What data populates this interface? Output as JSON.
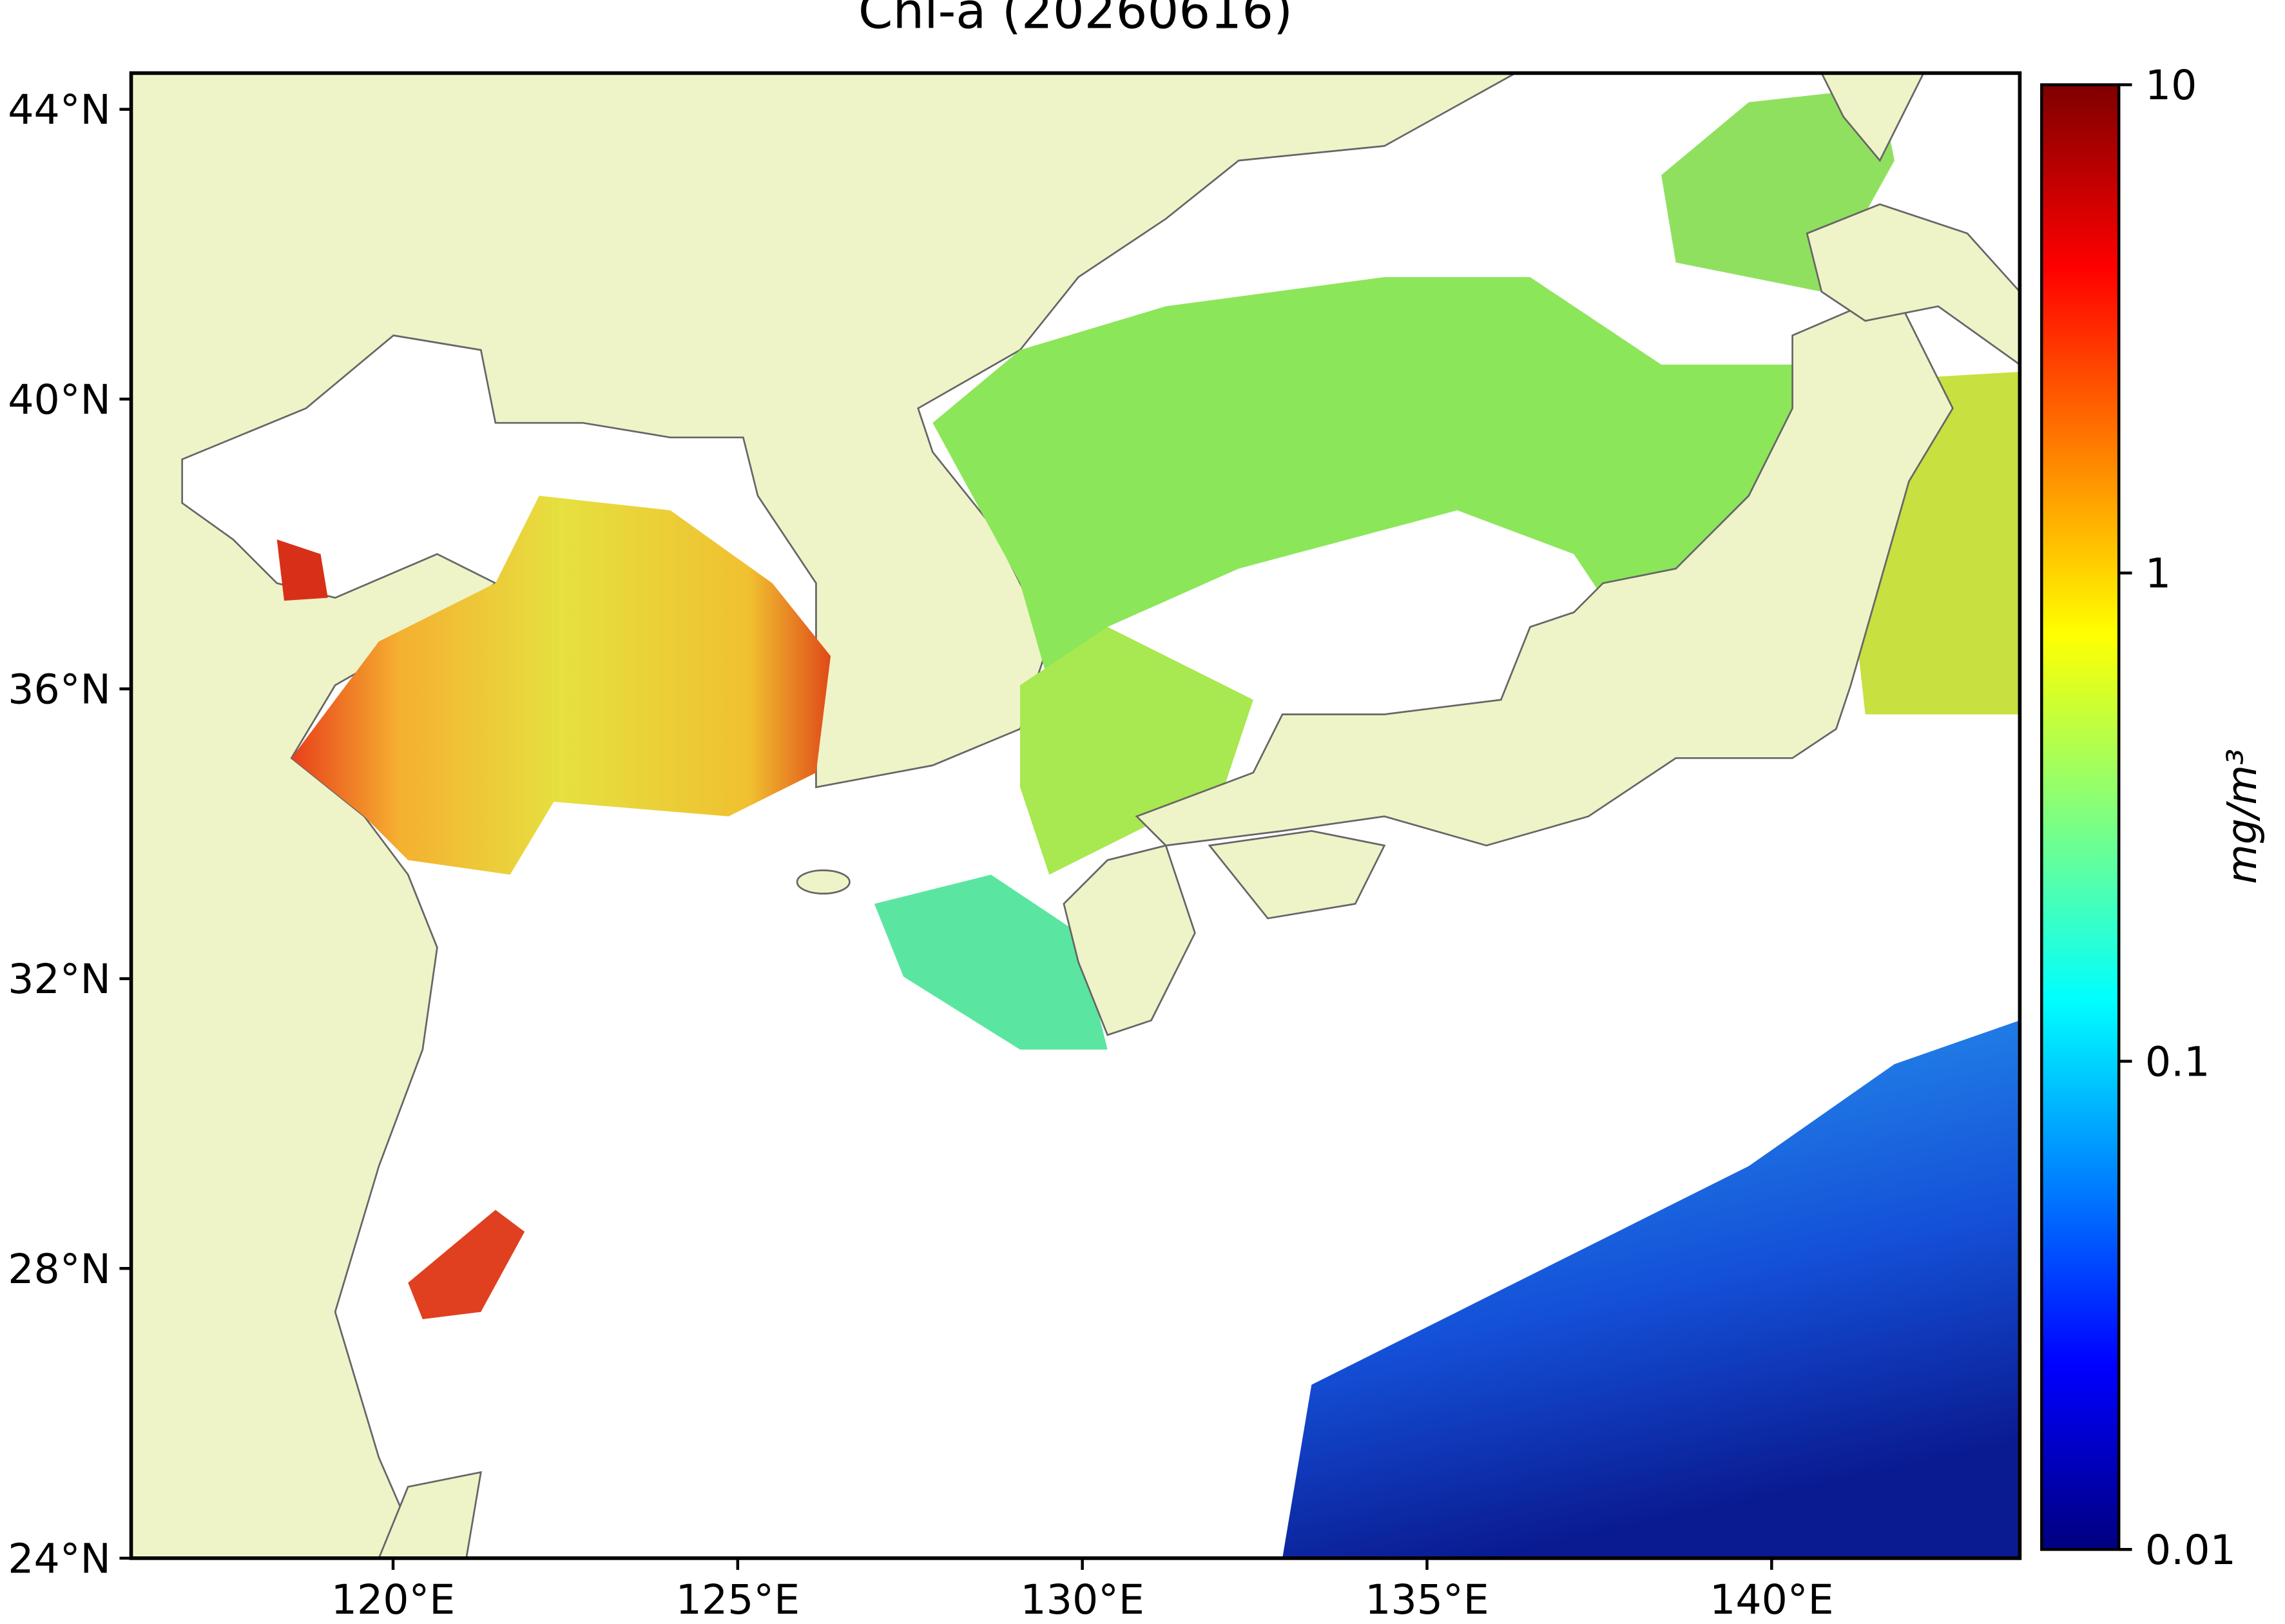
{
  "chart_data": {
    "type": "map",
    "title": "Chl-a (20260616)",
    "xlim": [
      116.2,
      143.6
    ],
    "ylim": [
      24,
      44.5
    ],
    "xticks": [
      {
        "value": 120,
        "label": "120°E"
      },
      {
        "value": 125,
        "label": "125°E"
      },
      {
        "value": 130,
        "label": "130°E"
      },
      {
        "value": 135,
        "label": "135°E"
      },
      {
        "value": 140,
        "label": "140°E"
      }
    ],
    "yticks": [
      {
        "value": 24,
        "label": "24°N"
      },
      {
        "value": 28,
        "label": "28°N"
      },
      {
        "value": 32,
        "label": "32°N"
      },
      {
        "value": 36,
        "label": "36°N"
      },
      {
        "value": 40,
        "label": "40°N"
      },
      {
        "value": 44,
        "label": "44°N"
      }
    ],
    "colorbar": {
      "label": "mg/m³",
      "scale": "log",
      "lim": [
        0.01,
        10
      ],
      "ticks": [
        0.01,
        0.1,
        1,
        10
      ]
    }
  }
}
